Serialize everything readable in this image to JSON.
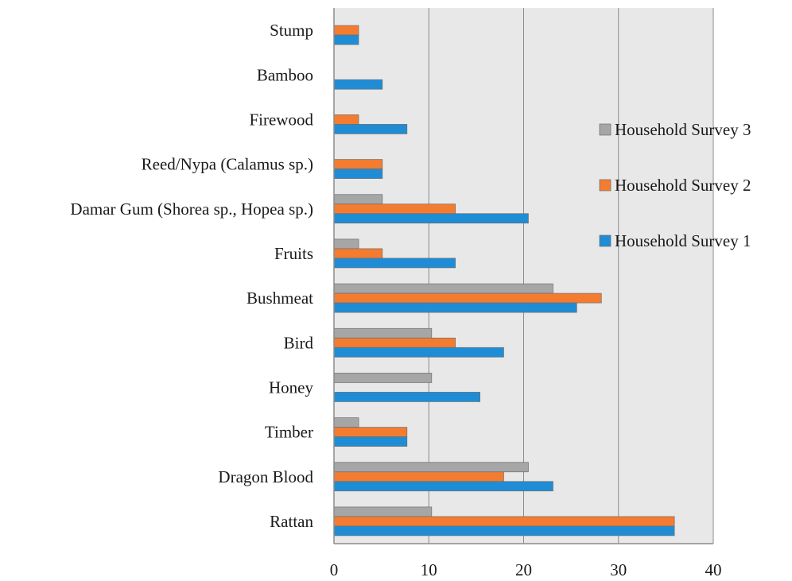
{
  "chart_data": {
    "type": "bar",
    "orientation": "horizontal",
    "categories": [
      "Stump",
      "Bamboo",
      "Firewood",
      "Reed/Nypa (Calamus sp.)",
      "Damar Gum (Shorea sp., Hopea sp.)",
      "Fruits",
      "Bushmeat",
      "Bird",
      "Honey",
      "Timber",
      "Dragon Blood",
      "Rattan"
    ],
    "series": [
      {
        "name": "Household Survey 3",
        "color": "#a6a6a6",
        "values": [
          0,
          0,
          0,
          0,
          5.1,
          2.6,
          23.1,
          10.3,
          10.3,
          2.6,
          20.5,
          10.3
        ]
      },
      {
        "name": "Household Survey 2",
        "color": "#f47c30",
        "values": [
          2.6,
          0,
          2.6,
          5.1,
          12.8,
          5.1,
          28.2,
          12.8,
          0,
          7.7,
          17.9,
          35.9
        ]
      },
      {
        "name": "Household Survey 1",
        "color": "#1f8dd6",
        "values": [
          2.6,
          5.1,
          7.7,
          5.1,
          20.5,
          12.8,
          25.6,
          17.9,
          15.4,
          7.7,
          23.1,
          35.9
        ]
      }
    ],
    "xlim": [
      0,
      40
    ],
    "xticks": [
      0,
      10,
      20,
      30,
      40
    ],
    "title": "",
    "xlabel": "",
    "ylabel": "",
    "grid": "vertical",
    "legend_position": "right",
    "plot_background": "#e8e8e8"
  }
}
